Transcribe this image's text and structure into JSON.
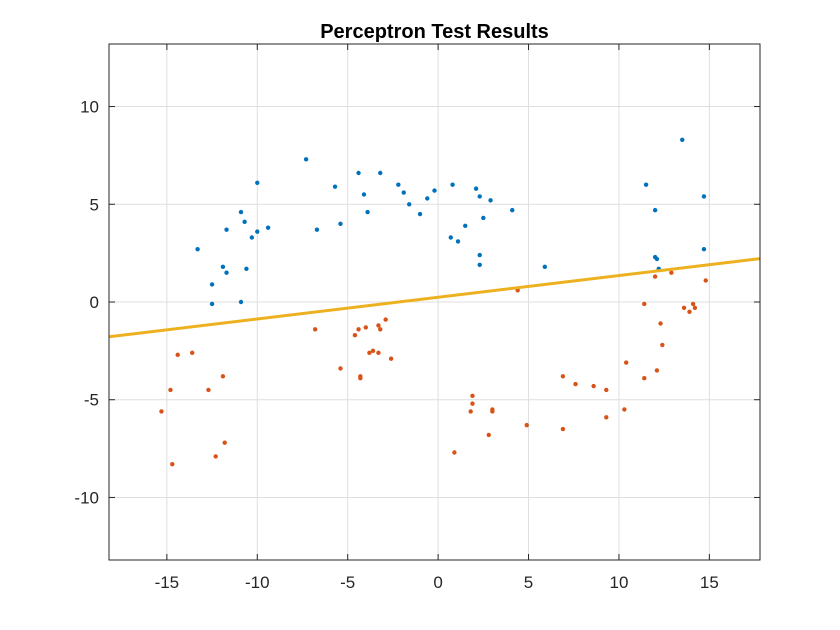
{
  "chart_data": {
    "type": "scatter",
    "title": "Perceptron Test Results",
    "xlabel": "",
    "ylabel": "",
    "xlim": [
      -18.2,
      17.8
    ],
    "ylim": [
      -13.2,
      13.2
    ],
    "xticks": [
      -15,
      -10,
      -5,
      0,
      5,
      10,
      15
    ],
    "yticks": [
      -10,
      -5,
      0,
      5,
      10
    ],
    "grid": true,
    "colors": {
      "class_1": "#0072BD",
      "class_2": "#D95319",
      "boundary": "#EDB120",
      "axis": "#262626",
      "grid": "#DFDFDF"
    },
    "series": [
      {
        "color_key": "class_1",
        "points": [
          [
            -13.3,
            2.7
          ],
          [
            -12.5,
            0.9
          ],
          [
            -12.5,
            -0.1
          ],
          [
            -11.9,
            1.8
          ],
          [
            -11.7,
            3.7
          ],
          [
            -11.7,
            1.5
          ],
          [
            -10.9,
            4.6
          ],
          [
            -10.7,
            4.1
          ],
          [
            -10.6,
            1.7
          ],
          [
            -10.9,
            0.0
          ],
          [
            -10.3,
            3.3
          ],
          [
            -10.0,
            3.6
          ],
          [
            -10.0,
            6.1
          ],
          [
            -9.4,
            3.8
          ],
          [
            -7.3,
            7.3
          ],
          [
            -6.7,
            3.7
          ],
          [
            -5.7,
            5.9
          ],
          [
            -5.4,
            4.0
          ],
          [
            -4.4,
            6.6
          ],
          [
            -4.1,
            5.5
          ],
          [
            -3.9,
            4.6
          ],
          [
            -3.2,
            6.6
          ],
          [
            -2.2,
            6.0
          ],
          [
            -1.9,
            5.6
          ],
          [
            -1.6,
            5.0
          ],
          [
            -1.0,
            4.5
          ],
          [
            -0.6,
            5.3
          ],
          [
            -0.2,
            5.7
          ],
          [
            0.7,
            3.3
          ],
          [
            0.8,
            6.0
          ],
          [
            1.1,
            3.1
          ],
          [
            1.5,
            3.9
          ],
          [
            2.1,
            5.8
          ],
          [
            2.3,
            5.4
          ],
          [
            2.5,
            4.3
          ],
          [
            2.3,
            2.4
          ],
          [
            2.3,
            1.9
          ],
          [
            2.9,
            5.2
          ],
          [
            4.1,
            4.7
          ],
          [
            5.9,
            1.8
          ],
          [
            11.5,
            6.0
          ],
          [
            12.0,
            4.7
          ],
          [
            12.0,
            2.3
          ],
          [
            12.1,
            2.2
          ],
          [
            12.2,
            1.7
          ],
          [
            13.5,
            8.3
          ],
          [
            14.7,
            5.4
          ],
          [
            14.7,
            2.7
          ]
        ]
      },
      {
        "color_key": "class_2",
        "points": [
          [
            -15.3,
            -5.6
          ],
          [
            -14.8,
            -4.5
          ],
          [
            -14.7,
            -8.3
          ],
          [
            -14.4,
            -2.7
          ],
          [
            -13.6,
            -2.6
          ],
          [
            -12.7,
            -4.5
          ],
          [
            -12.3,
            -7.9
          ],
          [
            -11.9,
            -3.8
          ],
          [
            -11.8,
            -7.2
          ],
          [
            -6.8,
            -1.4
          ],
          [
            -5.4,
            -3.4
          ],
          [
            -4.6,
            -1.7
          ],
          [
            -4.4,
            -1.4
          ],
          [
            -4.3,
            -3.8
          ],
          [
            -4.3,
            -3.9
          ],
          [
            -4.0,
            -1.3
          ],
          [
            -3.8,
            -2.6
          ],
          [
            -3.6,
            -2.5
          ],
          [
            -3.3,
            -1.2
          ],
          [
            -3.3,
            -2.6
          ],
          [
            -3.2,
            -1.4
          ],
          [
            -2.9,
            -0.9
          ],
          [
            -2.6,
            -2.9
          ],
          [
            0.9,
            -7.7
          ],
          [
            1.8,
            -5.6
          ],
          [
            1.9,
            -4.8
          ],
          [
            1.9,
            -5.2
          ],
          [
            2.8,
            -6.8
          ],
          [
            3.0,
            -5.6
          ],
          [
            3.0,
            -5.5
          ],
          [
            4.4,
            0.6
          ],
          [
            4.9,
            -6.3
          ],
          [
            6.9,
            -3.8
          ],
          [
            6.9,
            -6.5
          ],
          [
            7.6,
            -4.2
          ],
          [
            8.6,
            -4.3
          ],
          [
            9.3,
            -5.9
          ],
          [
            9.3,
            -4.5
          ],
          [
            10.3,
            -5.5
          ],
          [
            10.4,
            -3.1
          ],
          [
            11.4,
            -3.9
          ],
          [
            11.4,
            -0.1
          ],
          [
            12.0,
            1.3
          ],
          [
            12.1,
            -3.5
          ],
          [
            12.3,
            -1.1
          ],
          [
            12.4,
            -2.2
          ],
          [
            12.9,
            1.5
          ],
          [
            13.6,
            -0.3
          ],
          [
            13.9,
            -0.5
          ],
          [
            14.1,
            -0.1
          ],
          [
            14.2,
            -0.3
          ],
          [
            14.8,
            1.1
          ]
        ]
      }
    ],
    "lines": [
      {
        "color_key": "boundary",
        "x": [
          -18.2,
          17.8
        ],
        "y": [
          -1.78,
          2.22
        ]
      }
    ]
  }
}
